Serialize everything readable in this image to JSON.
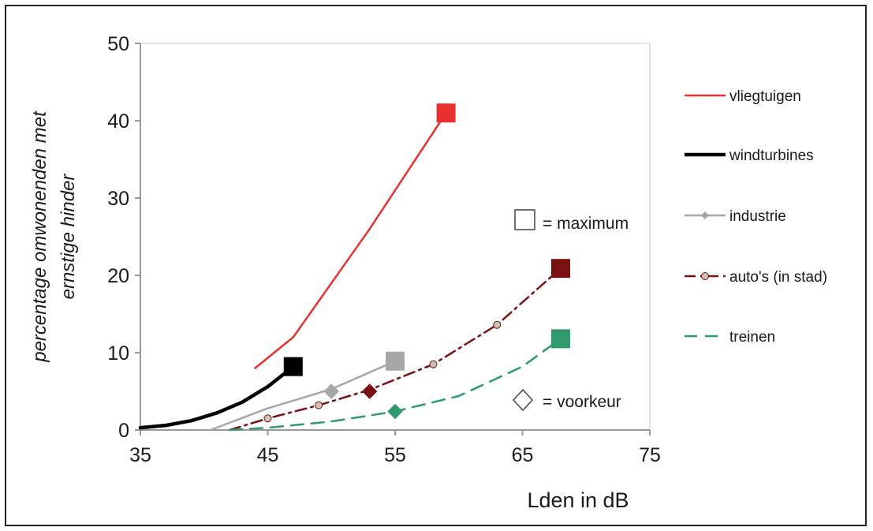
{
  "chart_data": {
    "type": "line",
    "xlabel": "Lden in dB",
    "ylabel_lines": [
      "percentage omwonenden met",
      "ernstige hinder"
    ],
    "xlim": [
      35,
      75
    ],
    "ylim": [
      0,
      50
    ],
    "x_ticks": [
      "35",
      "45",
      "55",
      "65",
      "75"
    ],
    "y_ticks": [
      "0",
      "10",
      "20",
      "30",
      "40",
      "50"
    ],
    "grid": false,
    "legend_position": "right",
    "series": [
      {
        "name": "vliegtuigen",
        "color": "#e8302f",
        "style": "solid",
        "x": [
          44,
          47,
          50,
          53,
          56,
          58,
          59
        ],
        "y": [
          8,
          12,
          19,
          26,
          33.5,
          38.5,
          41
        ],
        "max": {
          "x": 59,
          "y": 41
        },
        "pref": null
      },
      {
        "name": "windturbines",
        "color": "#000000",
        "style": "solid-thick",
        "x": [
          35,
          37,
          39,
          41,
          43,
          45,
          47
        ],
        "y": [
          0.3,
          0.6,
          1.2,
          2.2,
          3.6,
          5.6,
          8.2
        ],
        "max": {
          "x": 47,
          "y": 8.2
        },
        "pref": null
      },
      {
        "name": "industrie",
        "color": "#a6a6a6",
        "style": "solid",
        "x": [
          40.5,
          45,
          50,
          55
        ],
        "y": [
          0,
          2.8,
          5.3,
          8.9
        ],
        "max": {
          "x": 55,
          "y": 8.9
        },
        "pref": {
          "x": 50,
          "y": 5
        }
      },
      {
        "name": "auto's (in stad)",
        "color": "#7b1012",
        "style": "dashdot",
        "x": [
          42,
          45,
          49,
          53,
          58,
          63,
          68
        ],
        "y": [
          0,
          1.5,
          3.2,
          5.2,
          8.5,
          13.6,
          20.9
        ],
        "markers": [
          [
            45,
            1.5
          ],
          [
            49,
            3.2
          ],
          [
            58,
            8.5
          ],
          [
            63,
            13.6
          ]
        ],
        "max": {
          "x": 68,
          "y": 20.9
        },
        "pref": {
          "x": 53,
          "y": 5
        }
      },
      {
        "name": "treinen",
        "color": "#2f9a6c",
        "style": "dashed",
        "x": [
          42,
          45,
          50,
          55,
          60,
          65,
          68
        ],
        "y": [
          0,
          0.3,
          1.1,
          2.4,
          4.4,
          8.2,
          11.8
        ],
        "max": {
          "x": 68,
          "y": 11.8
        },
        "pref": {
          "x": 55,
          "y": 2.4
        }
      }
    ],
    "annotations": {
      "maximum": "= maximum",
      "voorkeur": "= voorkeur"
    }
  }
}
